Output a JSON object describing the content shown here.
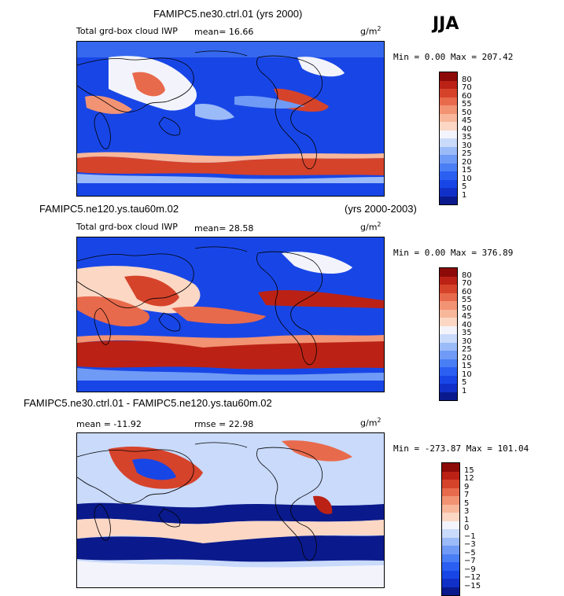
{
  "season": "JJA",
  "panels": [
    {
      "title": "FAMIPC5.ne30.ctrl.01 (yrs 2000)",
      "subtitle_left": "Total grd-box cloud IWP",
      "stat_line": "mean=   16.66",
      "units": "g/m",
      "units_exp": "2",
      "minmax": "Min =   0.00 Max = 207.42",
      "colorbar_labels": [
        "80",
        "70",
        "60",
        "55",
        "50",
        "45",
        "40",
        "35",
        "30",
        "25",
        "20",
        "15",
        "10",
        "5",
        "1"
      ]
    },
    {
      "title": "FAMIPC5.ne120.ys.tau60m.02",
      "title_right": "(yrs 2000-2003)",
      "subtitle_left": "Total grd-box cloud IWP",
      "stat_line": "mean=   28.58",
      "units": "g/m",
      "units_exp": "2",
      "minmax": "Min =   0.00 Max = 376.89",
      "colorbar_labels": [
        "80",
        "70",
        "60",
        "55",
        "50",
        "45",
        "40",
        "35",
        "30",
        "25",
        "20",
        "15",
        "10",
        "5",
        "1"
      ]
    },
    {
      "title": "FAMIPC5.ne30.ctrl.01 - FAMIPC5.ne120.ys.tau60m.02",
      "stat_line": "mean = -11.92",
      "rmse": "rmse =   22.98",
      "units": "g/m",
      "units_exp": "2",
      "minmax": "Min = -273.87 Max = 101.04",
      "colorbar_labels": [
        "15",
        "12",
        "9",
        "7",
        "5",
        "3",
        "1",
        "0",
        "−1",
        "−3",
        "−5",
        "−7",
        "−9",
        "−12",
        "−15"
      ]
    }
  ],
  "chart_data": [
    {
      "type": "heatmap",
      "title": "FAMIPC5.ne30.ctrl.01 (yrs 2000)",
      "variable": "Total grd-box cloud IWP",
      "units": "g/m2",
      "mean": 16.66,
      "min": 0.0,
      "max": 207.42,
      "levels": [
        1,
        5,
        10,
        15,
        20,
        25,
        30,
        35,
        40,
        45,
        50,
        55,
        60,
        70,
        80
      ],
      "palette": [
        "#0a1a8c",
        "#1030c8",
        "#1846e6",
        "#2a5ff2",
        "#4a7ef5",
        "#6f9af6",
        "#9bbaf8",
        "#c9dafb",
        "#f3f4fb",
        "#fbd7c4",
        "#f8b79a",
        "#f29373",
        "#e86a4c",
        "#d6432b",
        "#bb2215",
        "#8c0a08"
      ]
    },
    {
      "type": "heatmap",
      "title": "FAMIPC5.ne120.ys.tau60m.02 (yrs 2000-2003)",
      "variable": "Total grd-box cloud IWP",
      "units": "g/m2",
      "mean": 28.58,
      "min": 0.0,
      "max": 376.89,
      "levels": [
        1,
        5,
        10,
        15,
        20,
        25,
        30,
        35,
        40,
        45,
        50,
        55,
        60,
        70,
        80
      ],
      "palette": [
        "#0a1a8c",
        "#1030c8",
        "#1846e6",
        "#2a5ff2",
        "#4a7ef5",
        "#6f9af6",
        "#9bbaf8",
        "#c9dafb",
        "#f3f4fb",
        "#fbd7c4",
        "#f8b79a",
        "#f29373",
        "#e86a4c",
        "#d6432b",
        "#bb2215",
        "#8c0a08"
      ]
    },
    {
      "type": "heatmap",
      "title": "FAMIPC5.ne30.ctrl.01 - FAMIPC5.ne120.ys.tau60m.02",
      "units": "g/m2",
      "mean": -11.92,
      "rmse": 22.98,
      "min": -273.87,
      "max": 101.04,
      "levels": [
        -15,
        -12,
        -9,
        -7,
        -5,
        -3,
        -1,
        0,
        1,
        3,
        5,
        7,
        9,
        12,
        15
      ],
      "palette": [
        "#0a1a8c",
        "#1030c8",
        "#1846e6",
        "#2a5ff2",
        "#4a7ef5",
        "#6f9af6",
        "#9bbaf8",
        "#c9dafb",
        "#f3f4fb",
        "#fbd7c4",
        "#f8b79a",
        "#f29373",
        "#e86a4c",
        "#d6432b",
        "#bb2215",
        "#8c0a08"
      ]
    }
  ]
}
